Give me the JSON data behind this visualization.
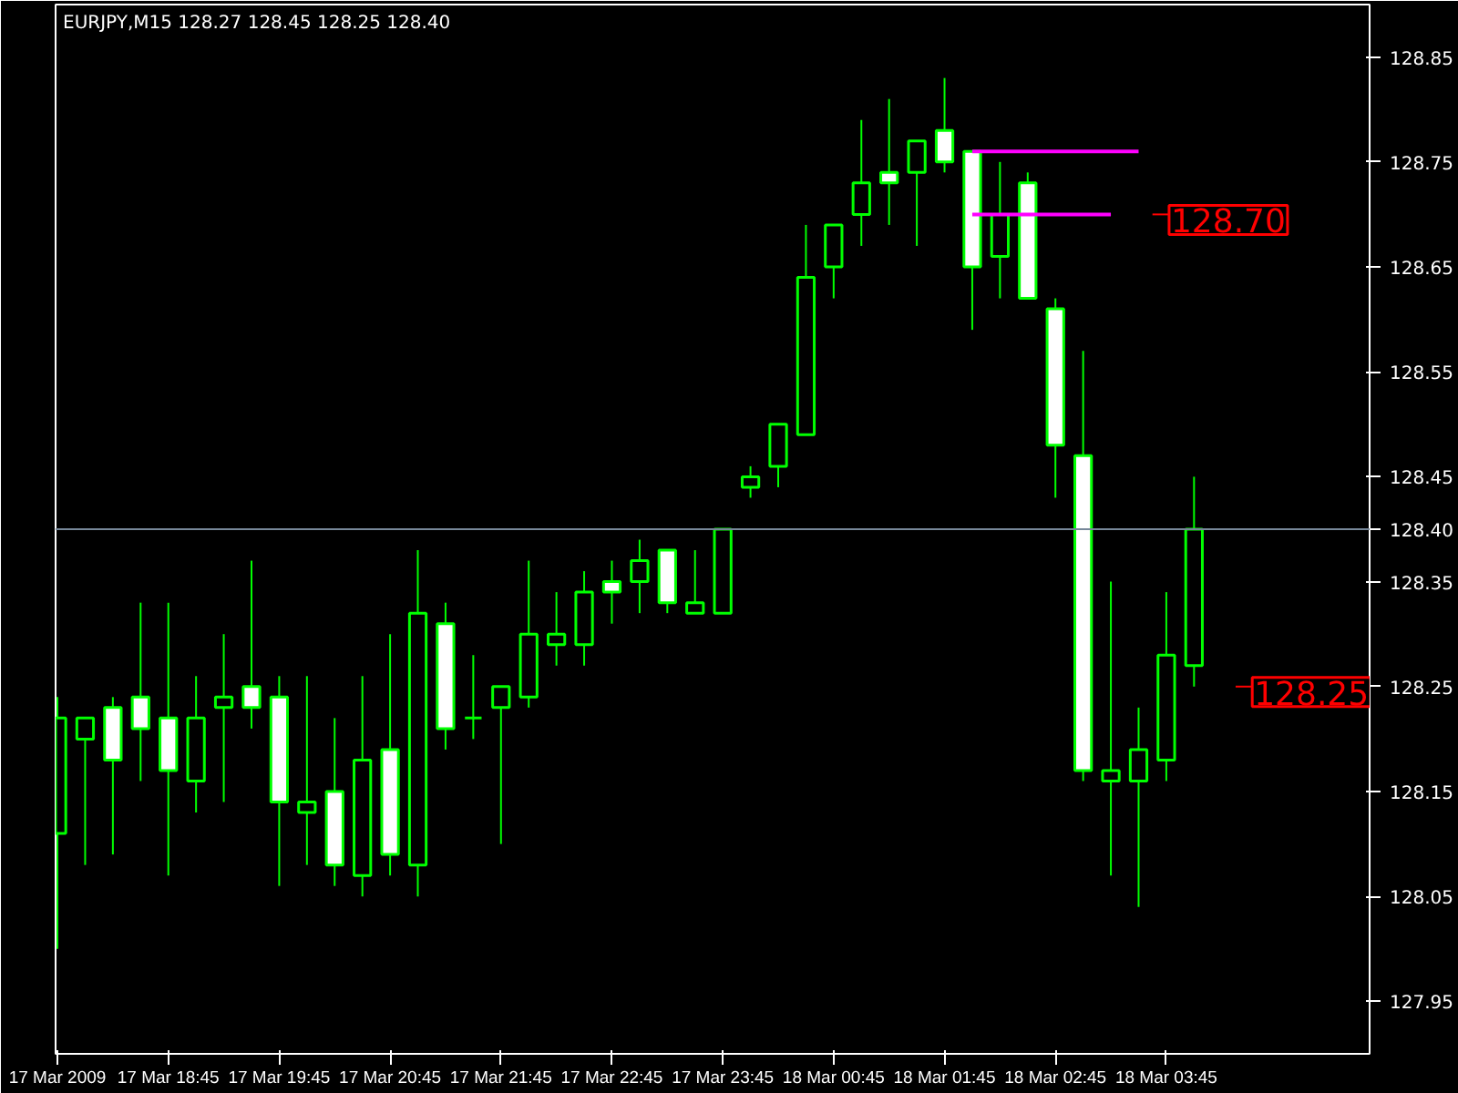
{
  "chart_data": {
    "type": "candlestick",
    "title": "EURJPY,M15  128.27 128.45 128.25 128.40",
    "color": "#00ff00",
    "x": [
      "2009-03-17T17:45",
      "2009-03-17T18:00",
      "2009-03-17T18:15",
      "2009-03-17T18:30",
      "2009-03-17T18:45",
      "2009-03-17T19:00",
      "2009-03-17T19:15",
      "2009-03-17T19:30",
      "2009-03-17T19:45",
      "2009-03-17T20:00",
      "2009-03-17T20:15",
      "2009-03-17T20:30",
      "2009-03-17T20:45",
      "2009-03-17T21:00",
      "2009-03-17T21:15",
      "2009-03-17T21:30",
      "2009-03-17T21:45",
      "2009-03-17T22:00",
      "2009-03-17T22:15",
      "2009-03-17T22:30",
      "2009-03-17T22:45",
      "2009-03-17T23:00",
      "2009-03-17T23:15",
      "2009-03-17T23:30",
      "2009-03-17T23:45",
      "2009-03-18T00:00",
      "2009-03-18T00:15",
      "2009-03-18T00:30",
      "2009-03-18T00:45",
      "2009-03-18T01:00",
      "2009-03-18T01:15",
      "2009-03-18T01:30",
      "2009-03-18T01:45",
      "2009-03-18T02:00",
      "2009-03-18T02:15",
      "2009-03-18T02:30",
      "2009-03-18T02:45",
      "2009-03-18T03:00",
      "2009-03-18T03:15",
      "2009-03-18T03:30",
      "2009-03-18T03:45",
      "2009-03-18T04:00"
    ],
    "ohlc": [
      [
        128.11,
        128.24,
        128.0,
        128.22
      ],
      [
        128.2,
        128.22,
        128.08,
        128.22
      ],
      [
        128.23,
        128.24,
        128.09,
        128.18
      ],
      [
        128.24,
        128.33,
        128.16,
        128.21
      ],
      [
        128.22,
        128.33,
        128.07,
        128.17
      ],
      [
        128.16,
        128.26,
        128.13,
        128.22
      ],
      [
        128.23,
        128.3,
        128.14,
        128.24
      ],
      [
        128.25,
        128.37,
        128.21,
        128.23
      ],
      [
        128.24,
        128.26,
        128.06,
        128.14
      ],
      [
        128.13,
        128.26,
        128.08,
        128.14
      ],
      [
        128.15,
        128.22,
        128.06,
        128.08
      ],
      [
        128.07,
        128.26,
        128.05,
        128.18
      ],
      [
        128.19,
        128.3,
        128.07,
        128.09
      ],
      [
        128.08,
        128.38,
        128.05,
        128.32
      ],
      [
        128.31,
        128.33,
        128.19,
        128.21
      ],
      [
        128.22,
        128.28,
        128.2,
        128.22
      ],
      [
        128.23,
        128.25,
        128.1,
        128.25
      ],
      [
        128.24,
        128.37,
        128.23,
        128.3
      ],
      [
        128.29,
        128.34,
        128.27,
        128.3
      ],
      [
        128.29,
        128.36,
        128.27,
        128.34
      ],
      [
        128.35,
        128.37,
        128.31,
        128.34
      ],
      [
        128.35,
        128.39,
        128.32,
        128.37
      ],
      [
        128.38,
        128.38,
        128.32,
        128.33
      ],
      [
        128.32,
        128.38,
        128.32,
        128.33
      ],
      [
        128.32,
        128.4,
        128.32,
        128.4
      ],
      [
        128.44,
        128.46,
        128.43,
        128.45
      ],
      [
        128.46,
        128.5,
        128.44,
        128.5
      ],
      [
        128.49,
        128.69,
        128.49,
        128.64
      ],
      [
        128.65,
        128.69,
        128.62,
        128.69
      ],
      [
        128.7,
        128.79,
        128.67,
        128.73
      ],
      [
        128.74,
        128.81,
        128.69,
        128.73
      ],
      [
        128.74,
        128.77,
        128.67,
        128.77
      ],
      [
        128.78,
        128.83,
        128.74,
        128.75
      ],
      [
        128.76,
        128.76,
        128.59,
        128.65
      ],
      [
        128.66,
        128.75,
        128.62,
        128.7
      ],
      [
        128.73,
        128.74,
        128.62,
        128.62
      ],
      [
        128.61,
        128.62,
        128.43,
        128.48
      ],
      [
        128.47,
        128.57,
        128.16,
        128.17
      ],
      [
        128.16,
        128.35,
        128.07,
        128.17
      ],
      [
        128.16,
        128.23,
        128.04,
        128.19
      ],
      [
        128.18,
        128.34,
        128.16,
        128.28
      ],
      [
        128.27,
        128.45,
        128.25,
        128.4
      ]
    ],
    "xlim": [
      "2009-03-17T17:44",
      "2009-03-18T05:35"
    ],
    "ylim": [
      127.9,
      128.9
    ],
    "xticks": [
      {
        "value": "2009-03-17T17:45",
        "label": "17 Mar 2009"
      },
      {
        "value": "2009-03-17T18:45",
        "label": "17 Mar 18:45"
      },
      {
        "value": "2009-03-17T19:45",
        "label": "17 Mar 19:45"
      },
      {
        "value": "2009-03-17T20:45",
        "label": "17 Mar 20:45"
      },
      {
        "value": "2009-03-17T21:45",
        "label": "17 Mar 21:45"
      },
      {
        "value": "2009-03-17T22:45",
        "label": "17 Mar 22:45"
      },
      {
        "value": "2009-03-17T23:45",
        "label": "17 Mar 23:45"
      },
      {
        "value": "2009-03-18T00:45",
        "label": "18 Mar 00:45"
      },
      {
        "value": "2009-03-18T01:45",
        "label": "18 Mar 01:45"
      },
      {
        "value": "2009-03-18T02:45",
        "label": "18 Mar 02:45"
      },
      {
        "value": "2009-03-18T03:45",
        "label": "18 Mar 03:45"
      }
    ],
    "yticks": [
      {
        "value": 127.95,
        "label": "127.95"
      },
      {
        "value": 128.05,
        "label": "128.05"
      },
      {
        "value": 128.15,
        "label": "128.15"
      },
      {
        "value": 128.25,
        "label": "128.25"
      },
      {
        "value": 128.35,
        "label": "128.35"
      },
      {
        "value": 128.45,
        "label": "128.45"
      },
      {
        "value": 128.55,
        "label": "128.55"
      },
      {
        "value": 128.65,
        "label": "128.65"
      },
      {
        "value": 128.75,
        "label": "128.75"
      },
      {
        "value": 128.85,
        "label": "128.85"
      }
    ],
    "ref_lines": [
      {
        "axis": "y",
        "value": 128.4,
        "label": "128.40",
        "color": "#778899"
      }
    ],
    "series": [
      {
        "type": "line",
        "color": "#ff00ff",
        "x": [
          "2009-03-18T02:00",
          "2009-03-18T03:30"
        ],
        "values": [
          128.76,
          128.76
        ]
      },
      {
        "type": "line",
        "color": "#ff00ff",
        "x": [
          "2009-03-18T02:00",
          "2009-03-18T03:15"
        ],
        "values": [
          128.7,
          128.7
        ]
      }
    ],
    "annotations": [
      {
        "text": "128.70",
        "x": "2009-03-18T03:15",
        "y": 128.7
      },
      {
        "text": "128.25",
        "x": "2009-03-18T04:00",
        "y": 128.25
      }
    ]
  }
}
